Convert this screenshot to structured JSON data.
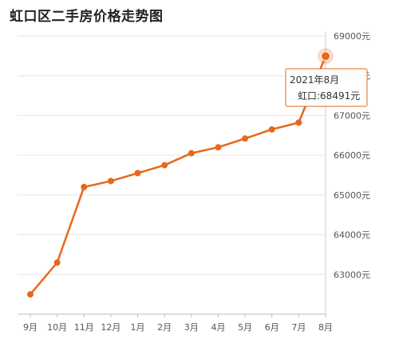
{
  "chart_data": {
    "type": "line",
    "title": "虹口区二手房价格走势图",
    "xlabel": "",
    "ylabel": "",
    "categories": [
      "9月",
      "10月",
      "11月",
      "12月",
      "1月",
      "2月",
      "3月",
      "4月",
      "5月",
      "6月",
      "7月",
      "8月"
    ],
    "series": [
      {
        "name": "虹口",
        "values": [
          62500,
          63300,
          65200,
          65350,
          65550,
          65750,
          66050,
          66200,
          66420,
          66650,
          66820,
          68491
        ]
      }
    ],
    "yticks": [
      "63000元",
      "64000元",
      "65000元",
      "66000元",
      "67000元",
      "68000元",
      "69000元"
    ],
    "ytick_values": [
      63000,
      64000,
      65000,
      66000,
      67000,
      68000,
      69000
    ],
    "ylim": [
      62000,
      69000
    ],
    "grid": true,
    "line_color": "#e8671c",
    "tooltip": {
      "date": "2021年8月",
      "label": "虹口:68491元",
      "border_color": "#e8671c",
      "index": 11
    }
  }
}
